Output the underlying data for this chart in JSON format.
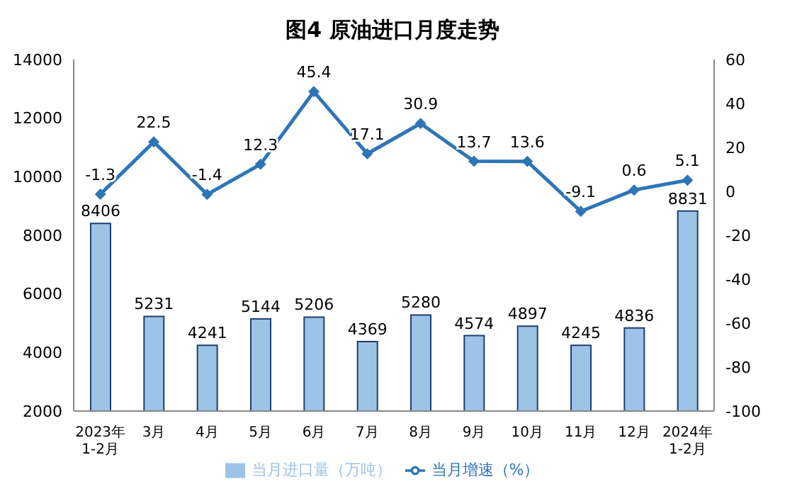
{
  "chart_data": {
    "type": "bar",
    "title": "图4  原油进口月度走势",
    "categories": [
      "2023年\n1-2月",
      "3月",
      "4月",
      "5月",
      "6月",
      "7月",
      "8月",
      "9月",
      "10月",
      "11月",
      "12月",
      "2024年\n1-2月"
    ],
    "series": [
      {
        "name": "当月进口量（万吨）",
        "color": "#9dc3e6",
        "values": [
          8406,
          5231,
          4241,
          5144,
          5206,
          4369,
          5280,
          4574,
          4897,
          4245,
          4836,
          8831
        ]
      },
      {
        "name": "当月增速（%）",
        "type": "line",
        "axis": "y2",
        "color": "#2e75b6",
        "values": [
          -1.3,
          22.5,
          -1.4,
          12.3,
          45.4,
          17.1,
          30.9,
          13.7,
          13.6,
          -9.1,
          0.6,
          5.1
        ]
      }
    ],
    "ylim": [
      2000,
      14000
    ],
    "yticks": [
      2000,
      4000,
      6000,
      8000,
      10000,
      12000,
      14000
    ],
    "y2lim": [
      -100,
      60
    ],
    "y2ticks": [
      -100,
      -80,
      -60,
      -40,
      -20,
      0,
      20,
      40,
      60
    ],
    "grid": false,
    "legend": "bottom",
    "marker": "diamond",
    "line_style": "solid",
    "data_labels": true
  }
}
